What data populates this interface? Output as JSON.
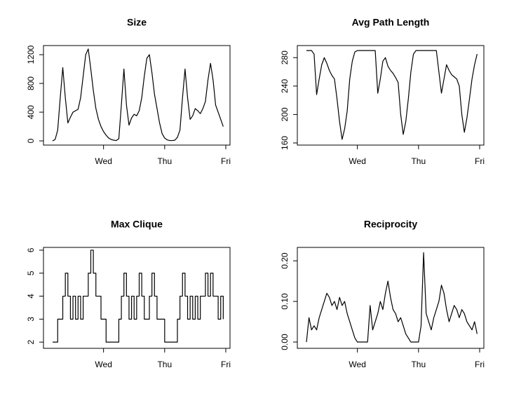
{
  "chart_data": [
    {
      "type": "line",
      "title": "Size",
      "color": "#000000",
      "categories": [
        null,
        null,
        null,
        null,
        null,
        null,
        null,
        null,
        null,
        null,
        null,
        null,
        null,
        null,
        null,
        null,
        null,
        null,
        null,
        null,
        "Wed",
        null,
        null,
        null,
        null,
        null,
        null,
        null,
        null,
        null,
        null,
        null,
        null,
        null,
        null,
        null,
        null,
        null,
        null,
        null,
        null,
        null,
        null,
        null,
        "Thu",
        null,
        null,
        null,
        null,
        null,
        null,
        null,
        null,
        null,
        null,
        null,
        null,
        null,
        null,
        null,
        null,
        null,
        null,
        null,
        null,
        null,
        null,
        null,
        "Fri"
      ],
      "values": [
        0,
        20,
        150,
        600,
        1020,
        600,
        250,
        330,
        400,
        420,
        440,
        600,
        900,
        1200,
        1280,
        1000,
        700,
        450,
        300,
        200,
        130,
        80,
        40,
        20,
        10,
        5,
        30,
        500,
        1000,
        500,
        220,
        320,
        370,
        350,
        420,
        600,
        900,
        1150,
        1200,
        950,
        650,
        450,
        250,
        100,
        40,
        15,
        5,
        5,
        10,
        50,
        150,
        600,
        1000,
        600,
        300,
        350,
        450,
        420,
        380,
        450,
        550,
        850,
        1080,
        850,
        500,
        400,
        300,
        200,
        null
      ],
      "ylim": [
        -58,
        1327
      ],
      "yticks": [
        0,
        400,
        800,
        1200
      ]
    },
    {
      "type": "line",
      "title": "Avg Path Length",
      "color": "#000000",
      "categories": [
        null,
        null,
        null,
        null,
        null,
        null,
        null,
        null,
        null,
        null,
        null,
        null,
        null,
        null,
        null,
        null,
        null,
        null,
        null,
        null,
        "Wed",
        null,
        null,
        null,
        null,
        null,
        null,
        null,
        null,
        null,
        null,
        null,
        null,
        null,
        null,
        null,
        null,
        null,
        null,
        null,
        null,
        null,
        null,
        null,
        "Thu",
        null,
        null,
        null,
        null,
        null,
        null,
        null,
        null,
        null,
        null,
        null,
        null,
        null,
        null,
        null,
        null,
        null,
        null,
        null,
        null,
        null,
        null,
        null,
        "Fri"
      ],
      "values": [
        290,
        290,
        290,
        285,
        228,
        250,
        270,
        280,
        272,
        262,
        255,
        250,
        222,
        190,
        165,
        180,
        205,
        250,
        275,
        288,
        290,
        290,
        290,
        290,
        290,
        290,
        290,
        290,
        230,
        250,
        275,
        280,
        268,
        262,
        258,
        252,
        245,
        200,
        172,
        190,
        222,
        260,
        285,
        290,
        290,
        290,
        290,
        290,
        290,
        290,
        290,
        290,
        260,
        230,
        250,
        270,
        262,
        256,
        253,
        250,
        240,
        200,
        175,
        195,
        222,
        250,
        270,
        285,
        null
      ],
      "ylim": [
        157,
        297
      ],
      "yticks": [
        160,
        200,
        240,
        280
      ]
    },
    {
      "type": "step",
      "title": "Max Clique",
      "color": "#000000",
      "categories": [
        null,
        null,
        null,
        null,
        null,
        null,
        null,
        null,
        null,
        null,
        null,
        null,
        null,
        null,
        null,
        null,
        null,
        null,
        null,
        null,
        "Wed",
        null,
        null,
        null,
        null,
        null,
        null,
        null,
        null,
        null,
        null,
        null,
        null,
        null,
        null,
        null,
        null,
        null,
        null,
        null,
        null,
        null,
        null,
        null,
        "Thu",
        null,
        null,
        null,
        null,
        null,
        null,
        null,
        null,
        null,
        null,
        null,
        null,
        null,
        null,
        null,
        null,
        null,
        null,
        null,
        null,
        null,
        null,
        null,
        "Fri"
      ],
      "values": [
        2,
        2,
        3,
        3,
        4,
        5,
        4,
        3,
        4,
        3,
        4,
        3,
        4,
        4,
        5,
        6,
        5,
        4,
        4,
        3,
        3,
        2,
        2,
        2,
        2,
        2,
        3,
        4,
        5,
        4,
        3,
        4,
        3,
        4,
        5,
        4,
        3,
        3,
        4,
        5,
        4,
        3,
        3,
        3,
        2,
        2,
        2,
        2,
        2,
        3,
        4,
        5,
        4,
        3,
        4,
        3,
        4,
        3,
        4,
        4,
        5,
        4,
        5,
        4,
        4,
        3,
        4,
        3,
        null
      ],
      "ylim": [
        1.73,
        6.12
      ],
      "yticks": [
        2,
        3,
        4,
        5,
        6
      ]
    },
    {
      "type": "line",
      "title": "Reciprocity",
      "color": "#000000",
      "categories": [
        null,
        null,
        null,
        null,
        null,
        null,
        null,
        null,
        null,
        null,
        null,
        null,
        null,
        null,
        null,
        null,
        null,
        null,
        null,
        null,
        "Wed",
        null,
        null,
        null,
        null,
        null,
        null,
        null,
        null,
        null,
        null,
        null,
        null,
        null,
        null,
        null,
        null,
        null,
        null,
        null,
        null,
        null,
        null,
        null,
        "Thu",
        null,
        null,
        null,
        null,
        null,
        null,
        null,
        null,
        null,
        null,
        null,
        null,
        null,
        null,
        null,
        null,
        null,
        null,
        null,
        null,
        null,
        null,
        null,
        "Fri"
      ],
      "values": [
        0,
        0.06,
        0.03,
        0.04,
        0.03,
        0.06,
        0.08,
        0.1,
        0.12,
        0.11,
        0.09,
        0.1,
        0.08,
        0.11,
        0.09,
        0.1,
        0.07,
        0.05,
        0.03,
        0.01,
        0,
        0,
        0,
        0,
        0,
        0.09,
        0.03,
        0.05,
        0.07,
        0.1,
        0.08,
        0.12,
        0.15,
        0.11,
        0.08,
        0.07,
        0.05,
        0.06,
        0.04,
        0.02,
        0.01,
        0,
        0,
        0,
        0,
        0.04,
        0.22,
        0.07,
        0.05,
        0.03,
        0.06,
        0.08,
        0.1,
        0.14,
        0.12,
        0.08,
        0.05,
        0.07,
        0.09,
        0.08,
        0.06,
        0.08,
        0.07,
        0.05,
        0.04,
        0.03,
        0.05,
        0.02,
        null
      ],
      "ylim": [
        -0.0155,
        0.233
      ],
      "yticks": [
        {
          "value": 0,
          "label": "0.00"
        },
        {
          "value": 0.1,
          "label": "0.10"
        },
        {
          "value": 0.2,
          "label": "0.20"
        }
      ]
    }
  ]
}
